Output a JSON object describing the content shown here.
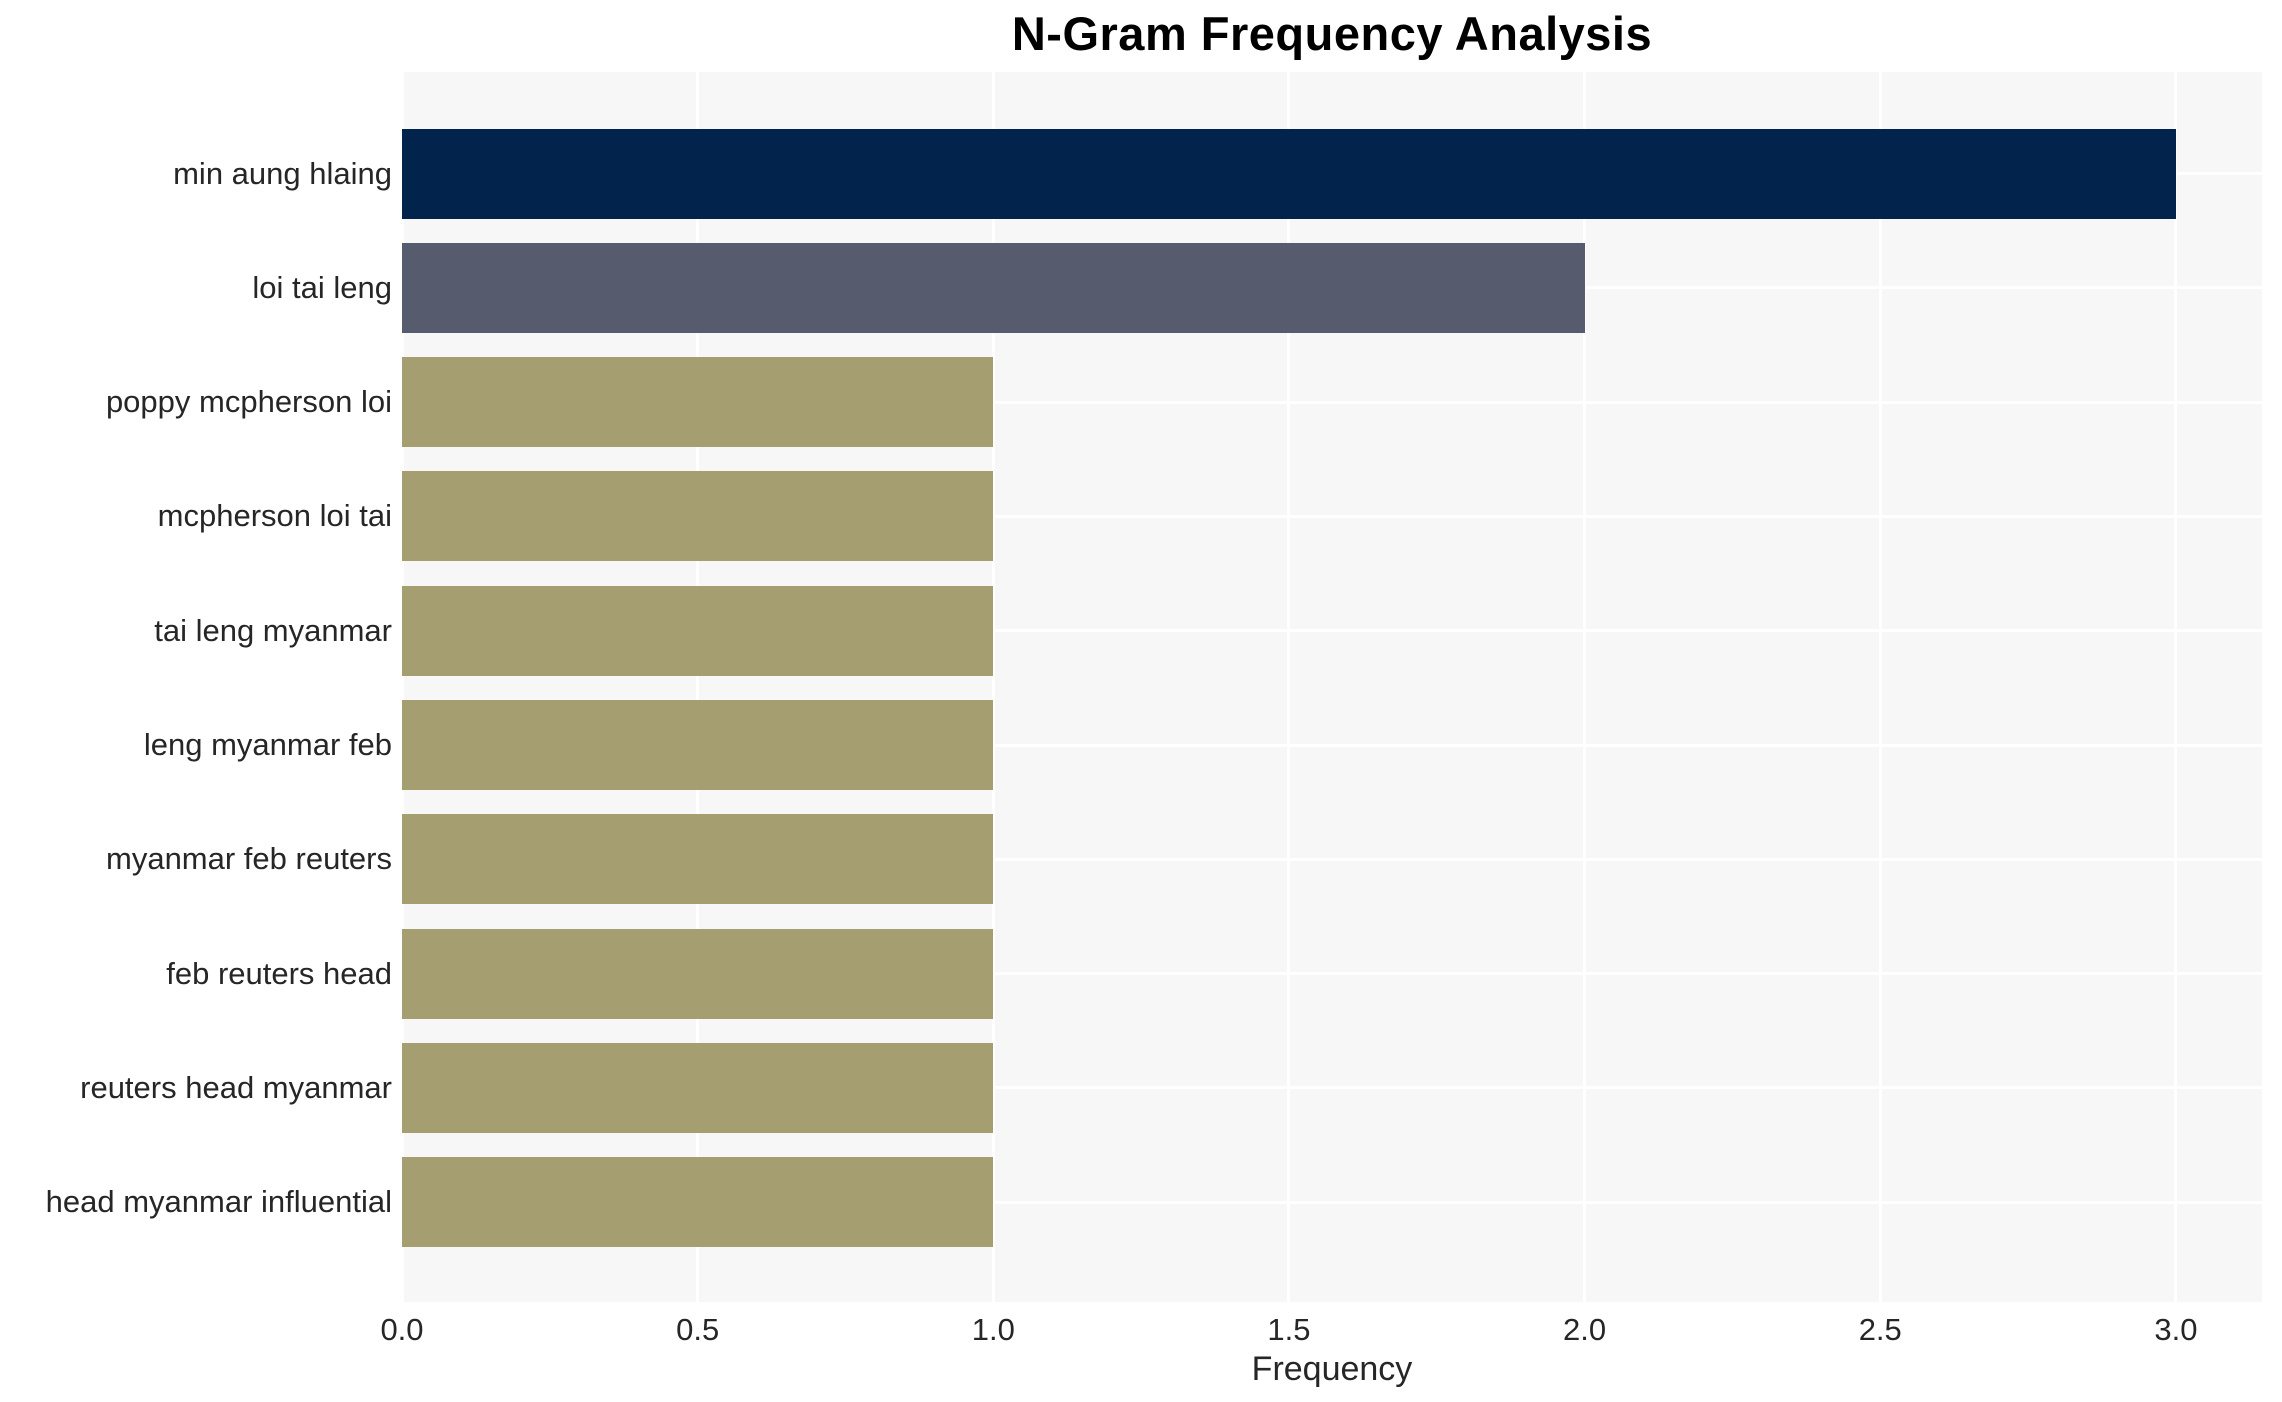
{
  "chart_data": {
    "type": "bar",
    "orientation": "horizontal",
    "title": "N-Gram Frequency Analysis",
    "xlabel": "Frequency",
    "ylabel": "",
    "categories": [
      "min aung hlaing",
      "loi tai leng",
      "poppy mcpherson loi",
      "mcpherson loi tai",
      "tai leng myanmar",
      "leng myanmar feb",
      "myanmar feb reuters",
      "feb reuters head",
      "reuters head myanmar",
      "head myanmar influential"
    ],
    "values": [
      3,
      2,
      1,
      1,
      1,
      1,
      1,
      1,
      1,
      1
    ],
    "bar_colors": [
      "#02234C",
      "#565C6D",
      "#A59E71",
      "#A59E71",
      "#A59E71",
      "#A59E71",
      "#A59E71",
      "#A59E71",
      "#A59E71",
      "#A59E71"
    ],
    "xticks": [
      "0.0",
      "0.5",
      "1.0",
      "1.5",
      "2.0",
      "2.5",
      "3.0"
    ],
    "xtick_values": [
      0,
      0.5,
      1.0,
      1.5,
      2.0,
      2.5,
      3.0
    ],
    "xlim": [
      0,
      3.145
    ],
    "grid": true,
    "legend_position": "none",
    "plot_background": "#F7F7F7",
    "grid_color": "#FFFFFF",
    "figure_background": "#FFFFFF",
    "text_color": "#262626",
    "title_color": "#000000"
  }
}
